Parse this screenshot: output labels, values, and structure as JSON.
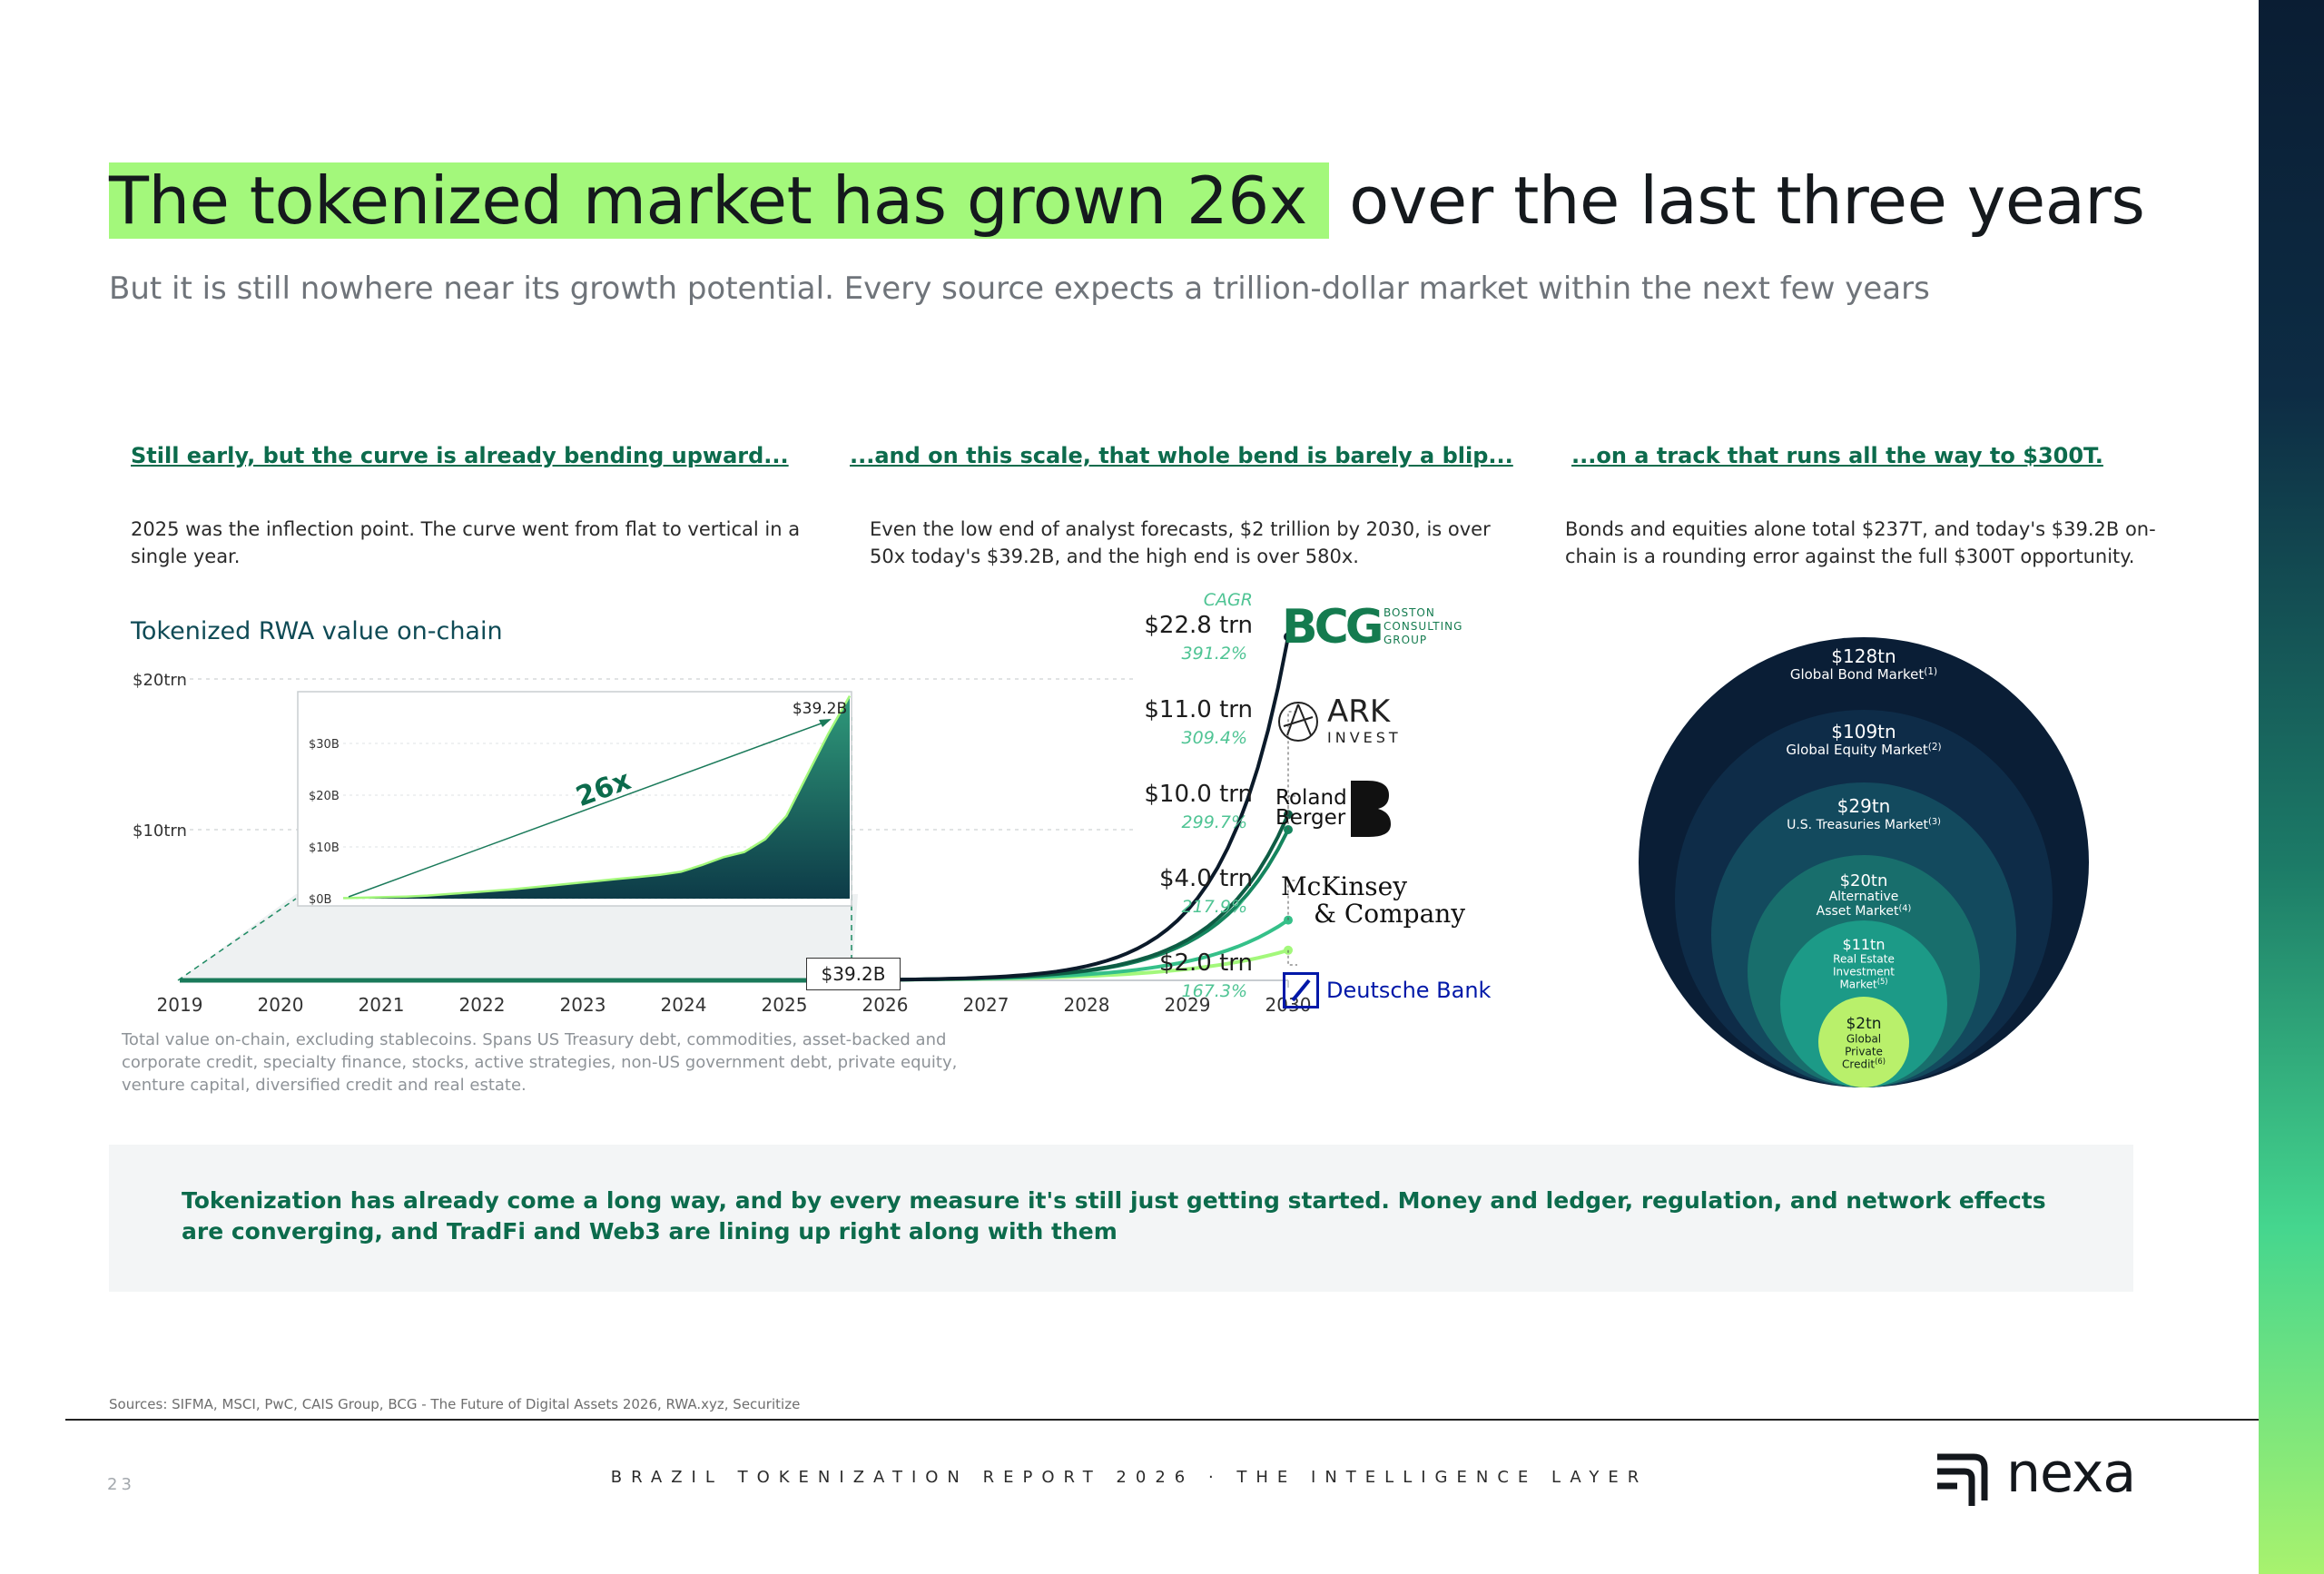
{
  "header": {
    "title_highlight": "The tokenized market has grown 26x",
    "title_rest": "over the last three years",
    "subtitle": "But it is still nowhere near its growth potential. Every source expects a trillion-dollar market within the next few years"
  },
  "columns": [
    {
      "heading": "Still early, but the curve is already bending upward...",
      "text": "2025 was the inflection point. The curve went from flat to vertical in a single year."
    },
    {
      "heading": "...and on this scale, that whole bend is barely a blip...",
      "text": "Even the low end of analyst forecasts, $2 trillion by 2030, is over 50x today's $39.2B, and the high end is over 580x."
    },
    {
      "heading": "...on a track that runs all the way to $300T.",
      "text": "Bonds and equities alone total $237T, and today's $39.2B on-chain is a rounding error against the full $300T opportunity."
    }
  ],
  "chart_data": [
    {
      "type": "line",
      "title": "Tokenized RWA value on-chain",
      "x": [
        "2019",
        "2020",
        "2021",
        "2022",
        "2023",
        "2024",
        "2025",
        "2026",
        "2027",
        "2028",
        "2029",
        "2030"
      ],
      "y_ticks": [
        "$10trn",
        "$20trn"
      ],
      "ylim": [
        0,
        20
      ],
      "yunit": "trn",
      "current_label": "$39.2B",
      "cagr_header": "CAGR",
      "series": [
        {
          "name": "BCG",
          "label": "$22.8 trn",
          "cagr": "391.2%",
          "start": 0.0392,
          "end": 22.8,
          "color": "#0b1a2a"
        },
        {
          "name": "ARK INVEST",
          "label": "$11.0 trn",
          "cagr": "309.4%",
          "start": 0.0392,
          "end": 11.0,
          "color": "#0e5c44"
        },
        {
          "name": "Roland Berger",
          "label": "$10.0 trn",
          "cagr": "299.7%",
          "start": 0.0392,
          "end": 10.0,
          "color": "#15855e"
        },
        {
          "name": "McKinsey & Company",
          "label": "$4.0 trn",
          "cagr": "217.9%",
          "start": 0.0392,
          "end": 4.0,
          "color": "#35c089"
        },
        {
          "name": "Deutsche Bank",
          "label": "$2.0 trn",
          "cagr": "167.3%",
          "start": 0.0392,
          "end": 2.0,
          "color": "#a3f87b"
        }
      ]
    },
    {
      "type": "area",
      "title": "",
      "inset": true,
      "y_ticks": [
        "$0B",
        "$10B",
        "$20B",
        "$30B"
      ],
      "ylim": [
        0,
        40
      ],
      "yunit": "B",
      "values": [
        0.1,
        0.2,
        0.3,
        0.4,
        0.6,
        0.9,
        1.2,
        1.5,
        1.8,
        2.2,
        2.6,
        3.0,
        3.4,
        3.8,
        4.2,
        4.6,
        5.2,
        6.5,
        8.0,
        9.0,
        11.5,
        16.0,
        24.0,
        32.0,
        39.2
      ],
      "end_label": "$39.2B",
      "annotation": "26x"
    },
    {
      "type": "nested-circles",
      "items": [
        {
          "value": "$128tn",
          "label": "Global Bond Market",
          "note": "(1)",
          "color": "#0a1e36"
        },
        {
          "value": "$109tn",
          "label": "Global Equity Market",
          "note": "(2)",
          "color": "#0e2c48"
        },
        {
          "value": "$29tn",
          "label": "U.S. Treasuries Market",
          "note": "(3)",
          "color": "#134a5e"
        },
        {
          "value": "$20tn",
          "label": "Alternative Asset Market",
          "note": "(4)",
          "color": "#186e6c"
        },
        {
          "value": "$11tn",
          "label": "Real Estate Investment Market",
          "note": "(5)",
          "color": "#1c9a87"
        },
        {
          "value": "$2tn",
          "label": "Global Private Credit",
          "note": "(6)",
          "color": "#b9f06b"
        }
      ]
    }
  ],
  "brands": {
    "bcg_sub": [
      "BOSTON",
      "CONSULTING",
      "GROUP"
    ],
    "ark": "ARK",
    "ark_sub": "INVEST",
    "roland": [
      "Roland",
      "Berger"
    ],
    "mckinsey": [
      "McKinsey",
      "& Company"
    ],
    "deutsche": "Deutsche Bank",
    "colors": {
      "bcg": "#147b4f",
      "deutsche": "#0018a8"
    }
  },
  "footnote": "Total value on-chain, excluding stablecoins. Spans US Treasury debt, commodities, asset-backed and corporate credit, specialty finance, stocks, active strategies, non-US government debt, private equity, venture capital, diversified credit and real estate.",
  "callout": "Tokenization has already come a long way, and by every measure it's still just getting started. Money and ledger, regulation, and network effects are converging, and TradFi and Web3 are lining up right along with them",
  "sources": "Sources: SIFMA, MSCI, PwC, CAIS Group, BCG - The Future of Digital Assets 2026, RWA.xyz, Securitize",
  "footer": {
    "page": "23",
    "report": "BRAZIL TOKENIZATION REPORT 2026 · THE INTELLIGENCE LAYER",
    "logo_text": "nexa"
  },
  "accent": {
    "green": "#0c6b4c",
    "highlight": "#a3f87b"
  }
}
